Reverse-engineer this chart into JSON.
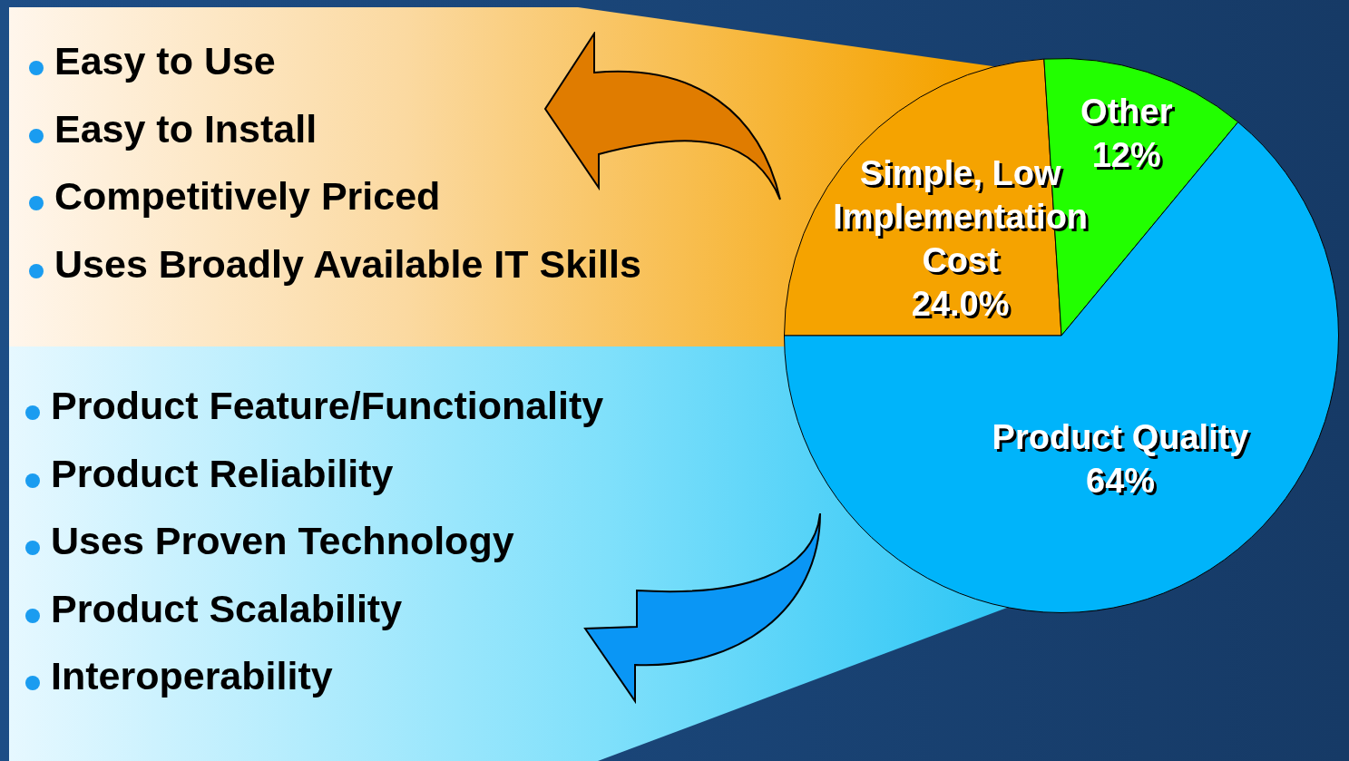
{
  "chart_data": {
    "type": "pie",
    "categories": [
      "Simple, Low Implementation Cost",
      "Other",
      "Product Quality"
    ],
    "values": [
      24.0,
      12,
      64
    ],
    "value_labels": [
      "24.0%",
      "12%",
      "64%"
    ],
    "colors": [
      "#f5a300",
      "#22ff00",
      "#00b4fa"
    ],
    "legend": false,
    "annotations": [
      "Easy to Use",
      "Easy to Install",
      "Competitively Priced",
      "Uses Broadly Available IT Skills",
      "Product Feature/Functionality",
      "Product Reliability",
      "Uses Proven Technology",
      "Product Scalability",
      "Interoperability"
    ]
  }
}
